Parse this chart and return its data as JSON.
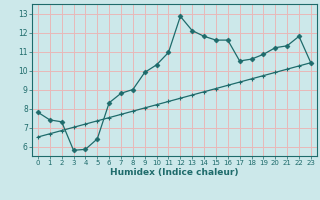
{
  "title": "",
  "xlabel": "Humidex (Indice chaleur)",
  "ylabel": "",
  "xlim": [
    -0.5,
    23.5
  ],
  "ylim": [
    5.5,
    13.5
  ],
  "xticks": [
    0,
    1,
    2,
    3,
    4,
    5,
    6,
    7,
    8,
    9,
    10,
    11,
    12,
    13,
    14,
    15,
    16,
    17,
    18,
    19,
    20,
    21,
    22,
    23
  ],
  "yticks": [
    6,
    7,
    8,
    9,
    10,
    11,
    12,
    13
  ],
  "background_color": "#cce8ea",
  "line_color": "#1e6b6b",
  "grid_color": "#e8b8b8",
  "jagged_x": [
    0,
    1,
    2,
    3,
    4,
    5,
    6,
    7,
    8,
    9,
    10,
    11,
    12,
    13,
    14,
    15,
    16,
    17,
    18,
    19,
    20,
    21,
    22,
    23
  ],
  "jagged_y": [
    7.8,
    7.4,
    7.3,
    5.8,
    5.85,
    6.4,
    8.3,
    8.8,
    9.0,
    9.9,
    10.3,
    10.95,
    12.85,
    12.1,
    11.8,
    11.6,
    11.6,
    10.5,
    10.6,
    10.85,
    11.2,
    11.3,
    11.8,
    10.4
  ],
  "diag_x": [
    0,
    1,
    2,
    3,
    4,
    5,
    6,
    7,
    8,
    9,
    10,
    11,
    12,
    13,
    14,
    15,
    16,
    17,
    18,
    19,
    20,
    21,
    22,
    23
  ],
  "diag_y": [
    6.5,
    6.67,
    6.84,
    7.01,
    7.18,
    7.35,
    7.52,
    7.69,
    7.86,
    8.03,
    8.2,
    8.37,
    8.54,
    8.71,
    8.88,
    9.05,
    9.22,
    9.39,
    9.56,
    9.73,
    9.9,
    10.07,
    10.24,
    10.41
  ],
  "marker_size": 2.5,
  "linewidth": 0.9
}
